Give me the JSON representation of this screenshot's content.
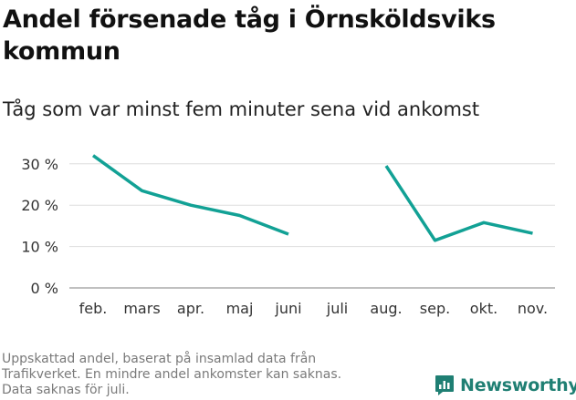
{
  "header": {
    "title_line1": "Andel försenade tåg i Örnsköldsviks",
    "title_line2": "kommun",
    "subtitle": "Tåg som var minst fem minuter sena vid ankomst"
  },
  "footnote": {
    "line1": "Uppskattad andel, baserat på insamlad data från",
    "line2": "Trafikverket. En mindre andel ankomster kan saknas.",
    "line3": "Data saknas för juli."
  },
  "brand": {
    "name": "Newsworthy",
    "color": "#1f7f73"
  },
  "chart_data": {
    "type": "line",
    "title": "Andel försenade tåg i Örnsköldsviks kommun",
    "subtitle": "Tåg som var minst fem minuter sena vid ankomst",
    "categories": [
      "feb.",
      "mars",
      "apr.",
      "maj",
      "juni",
      "juli",
      "aug.",
      "sep.",
      "okt.",
      "nov."
    ],
    "series": [
      {
        "color": "#12a195",
        "values": [
          32,
          23.5,
          20,
          17.5,
          13,
          null,
          29.5,
          11.5,
          15.8,
          13.2
        ]
      }
    ],
    "yticks": [
      0,
      10,
      20,
      30
    ],
    "ytick_labels": [
      "0 %",
      "10 %",
      "20 %",
      "30 %"
    ],
    "ylim": [
      0,
      35
    ],
    "grid": true,
    "legend": "none"
  }
}
